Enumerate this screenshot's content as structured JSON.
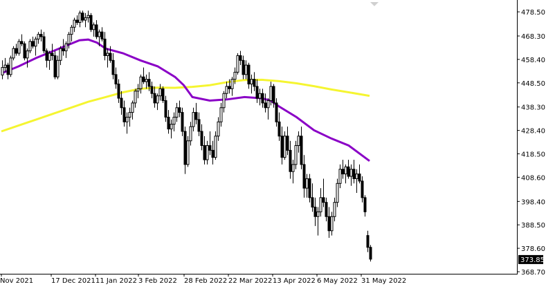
{
  "chart_data": {
    "type": "candlestick",
    "instrument_price_current": "373.85",
    "colors": {
      "background": "#ffffff",
      "frame": "#000000",
      "candle": "#000000",
      "ma_fast": "#8a00c6",
      "ma_slow": "#f5f531",
      "price_label_bg": "#000000"
    },
    "y_axis": {
      "range": [
        368.7,
        483.5
      ],
      "ticks": [
        "478.50",
        "468.30",
        "458.40",
        "448.50",
        "438.30",
        "428.40",
        "418.50",
        "408.60",
        "398.40",
        "388.50",
        "378.60",
        "368.70"
      ]
    },
    "x_axis": {
      "ticks": [
        "Nov 2021",
        "17 Dec 2021",
        "11 Jan 2022",
        "3 Feb 2022",
        "28 Feb 2022",
        "22 Mar 2022",
        "13 Apr 2022",
        "6 May 2022",
        "31 May 2022"
      ]
    },
    "ma_slow": [
      [
        0,
        428
      ],
      [
        10,
        430.5
      ],
      [
        20,
        433
      ],
      [
        30,
        435.5
      ],
      [
        40,
        438
      ],
      [
        50,
        440.5
      ],
      [
        60,
        442.5
      ],
      [
        70,
        444.5
      ],
      [
        80,
        446
      ],
      [
        90,
        446.5
      ],
      [
        100,
        446.4
      ],
      [
        110,
        446.8
      ],
      [
        120,
        447.5
      ],
      [
        130,
        448.8
      ],
      [
        140,
        449.7
      ],
      [
        150,
        449.8
      ],
      [
        160,
        449.2
      ],
      [
        170,
        448.3
      ],
      [
        180,
        447.1
      ],
      [
        190,
        445.7
      ],
      [
        200,
        444.5
      ],
      [
        212,
        443
      ]
    ],
    "ma_fast": [
      [
        0,
        452.5
      ],
      [
        10,
        455.5
      ],
      [
        20,
        459
      ],
      [
        30,
        462
      ],
      [
        40,
        465
      ],
      [
        45,
        466.5
      ],
      [
        50,
        466.8
      ],
      [
        55,
        465.5
      ],
      [
        60,
        463
      ],
      [
        70,
        461
      ],
      [
        80,
        458
      ],
      [
        90,
        455.5
      ],
      [
        100,
        451
      ],
      [
        105,
        447.5
      ],
      [
        110,
        442.5
      ],
      [
        120,
        441
      ],
      [
        130,
        441.5
      ],
      [
        140,
        442.5
      ],
      [
        150,
        442
      ],
      [
        155,
        441
      ],
      [
        160,
        438.5
      ],
      [
        170,
        434
      ],
      [
        180,
        428.5
      ],
      [
        190,
        425
      ],
      [
        200,
        422
      ],
      [
        212,
        415.5
      ]
    ],
    "candles": [
      [
        0,
        451.8,
        458,
        450,
        455
      ],
      [
        1,
        455,
        459,
        453,
        456
      ],
      [
        2,
        456,
        457,
        450,
        452
      ],
      [
        3,
        452,
        460,
        451,
        459
      ],
      [
        4,
        459,
        464,
        458,
        463
      ],
      [
        5,
        463,
        465,
        460,
        461
      ],
      [
        6,
        461,
        467,
        460,
        466
      ],
      [
        7,
        466,
        469,
        464,
        465
      ],
      [
        8,
        465,
        466,
        458,
        459
      ],
      [
        9,
        459,
        463,
        455,
        462
      ],
      [
        10,
        462,
        467,
        461,
        466
      ],
      [
        11,
        466,
        468,
        463,
        464
      ],
      [
        12,
        464,
        468,
        460,
        467
      ],
      [
        13,
        467,
        470,
        465,
        469
      ],
      [
        14,
        469,
        471,
        466,
        468
      ],
      [
        15,
        468,
        470,
        461,
        462
      ],
      [
        16,
        462,
        463,
        455,
        458
      ],
      [
        17,
        458,
        462,
        454,
        461
      ],
      [
        18,
        461,
        465,
        458,
        460
      ],
      [
        19,
        460,
        462,
        450,
        451
      ],
      [
        20,
        451,
        460,
        450,
        458
      ],
      [
        21,
        458,
        464,
        456,
        463
      ],
      [
        22,
        463,
        467,
        460,
        462
      ],
      [
        23,
        462,
        466,
        459,
        465
      ],
      [
        24,
        465,
        470,
        463,
        469
      ],
      [
        25,
        469,
        473,
        466,
        472
      ],
      [
        26,
        472,
        476,
        470,
        475
      ],
      [
        27,
        475,
        477,
        473,
        474
      ],
      [
        28,
        474,
        479,
        472,
        478
      ],
      [
        29,
        478,
        479,
        474,
        475
      ],
      [
        30,
        475,
        478,
        472,
        476
      ],
      [
        31,
        476,
        479,
        474,
        477
      ],
      [
        32,
        477,
        478,
        470,
        471
      ],
      [
        33,
        471,
        474,
        468,
        473
      ],
      [
        34,
        473,
        475,
        467,
        468
      ],
      [
        35,
        468,
        471,
        464,
        470
      ],
      [
        36,
        470,
        472,
        466,
        467
      ],
      [
        37,
        467,
        470,
        458,
        460
      ],
      [
        38,
        460,
        463,
        455,
        461
      ],
      [
        39,
        461,
        464,
        457,
        458
      ],
      [
        40,
        458,
        461,
        450,
        452
      ],
      [
        41,
        452,
        455,
        446,
        448
      ],
      [
        42,
        448,
        450,
        440,
        442
      ],
      [
        43,
        442,
        445,
        435,
        438
      ],
      [
        44,
        438,
        441,
        430,
        432
      ],
      [
        45,
        432,
        436,
        427,
        434
      ],
      [
        46,
        434,
        438,
        430,
        436
      ],
      [
        47,
        436,
        441,
        433,
        440
      ],
      [
        48,
        440,
        446,
        438,
        445
      ],
      [
        49,
        445,
        448,
        442,
        446
      ],
      [
        50,
        446,
        452,
        444,
        451
      ],
      [
        51,
        451,
        455,
        448,
        449
      ],
      [
        52,
        449,
        452,
        446,
        450
      ],
      [
        53,
        450,
        453,
        445,
        447
      ],
      [
        54,
        447,
        449,
        442,
        444
      ],
      [
        55,
        444,
        447,
        438,
        440
      ],
      [
        56,
        440,
        444,
        437,
        443
      ],
      [
        57,
        443,
        448,
        441,
        446
      ],
      [
        58,
        446,
        447,
        440,
        441
      ],
      [
        59,
        441,
        443,
        432,
        434
      ],
      [
        60,
        434,
        437,
        427,
        429
      ],
      [
        61,
        429,
        433,
        425,
        431
      ],
      [
        62,
        431,
        436,
        428,
        434
      ],
      [
        63,
        434,
        440,
        432,
        438
      ],
      [
        64,
        438,
        441,
        434,
        436
      ],
      [
        65,
        436,
        438,
        426,
        428
      ],
      [
        66,
        428,
        430,
        410,
        414
      ],
      [
        67,
        414,
        426,
        413,
        424
      ],
      [
        68,
        424,
        432,
        422,
        430
      ],
      [
        69,
        430,
        438,
        428,
        436
      ],
      [
        70,
        436,
        440,
        431,
        433
      ],
      [
        71,
        433,
        436,
        426,
        428
      ],
      [
        72,
        428,
        431,
        420,
        422
      ],
      [
        73,
        422,
        426,
        414,
        416
      ],
      [
        74,
        416,
        424,
        414,
        422
      ],
      [
        75,
        422,
        428,
        418,
        420
      ],
      [
        76,
        420,
        424,
        414,
        417
      ],
      [
        77,
        417,
        428,
        416,
        426
      ],
      [
        78,
        426,
        434,
        424,
        432
      ],
      [
        79,
        432,
        440,
        430,
        438
      ],
      [
        80,
        438,
        445,
        436,
        444
      ],
      [
        81,
        444,
        449,
        442,
        447
      ],
      [
        82,
        447,
        450,
        444,
        446
      ],
      [
        83,
        446,
        451,
        443,
        450
      ],
      [
        84,
        450,
        455,
        448,
        453
      ],
      [
        85,
        453,
        461,
        452,
        460
      ],
      [
        86,
        460,
        462,
        456,
        458
      ],
      [
        87,
        458,
        460,
        450,
        452
      ],
      [
        88,
        452,
        458,
        450,
        456
      ],
      [
        89,
        456,
        457,
        446,
        448
      ],
      [
        90,
        448,
        452,
        444,
        450
      ],
      [
        91,
        450,
        453,
        445,
        447
      ],
      [
        92,
        447,
        450,
        440,
        442
      ],
      [
        93,
        442,
        446,
        439,
        444
      ],
      [
        94,
        444,
        446,
        438,
        440
      ],
      [
        95,
        440,
        444,
        436,
        438
      ],
      [
        96,
        438,
        442,
        433,
        441
      ],
      [
        97,
        441,
        449,
        439,
        447
      ],
      [
        98,
        447,
        448,
        438,
        440
      ],
      [
        99,
        440,
        442,
        430,
        432
      ],
      [
        100,
        432,
        436,
        424,
        426
      ],
      [
        101,
        426,
        430,
        414,
        417
      ],
      [
        102,
        417,
        428,
        416,
        426
      ],
      [
        103,
        426,
        430,
        418,
        420
      ],
      [
        104,
        420,
        424,
        408,
        411
      ],
      [
        105,
        411,
        416,
        406,
        414
      ],
      [
        106,
        414,
        424,
        412,
        422
      ],
      [
        107,
        422,
        428,
        419,
        426
      ],
      [
        108,
        426,
        430,
        412,
        414
      ],
      [
        109,
        414,
        418,
        400,
        404
      ],
      [
        110,
        404,
        410,
        400,
        408
      ],
      [
        111,
        408,
        410,
        398,
        400
      ],
      [
        112,
        400,
        406,
        394,
        396
      ],
      [
        113,
        396,
        400,
        388,
        392
      ],
      [
        114,
        392,
        396,
        384,
        394
      ],
      [
        115,
        394,
        404,
        392,
        400
      ],
      [
        116,
        400,
        408,
        396,
        398
      ],
      [
        117,
        398,
        400,
        390,
        392
      ],
      [
        118,
        392,
        396,
        383,
        386
      ],
      [
        119,
        386,
        394,
        384,
        392
      ],
      [
        120,
        392,
        400,
        390,
        398
      ],
      [
        121,
        398,
        408,
        396,
        406
      ],
      [
        122,
        406,
        414,
        404,
        412
      ],
      [
        123,
        412,
        416,
        408,
        410
      ],
      [
        124,
        410,
        414,
        406,
        413
      ],
      [
        125,
        413,
        416,
        408,
        409
      ],
      [
        126,
        409,
        414,
        405,
        412
      ],
      [
        127,
        412,
        416,
        406,
        408
      ],
      [
        128,
        408,
        412,
        402,
        410
      ],
      [
        129,
        410,
        414,
        406,
        407
      ],
      [
        130,
        407,
        409,
        398,
        400
      ],
      [
        131,
        400,
        401,
        392,
        394
      ],
      [
        132,
        384,
        386,
        377,
        379
      ],
      [
        133,
        379,
        380,
        373,
        374
      ]
    ]
  }
}
